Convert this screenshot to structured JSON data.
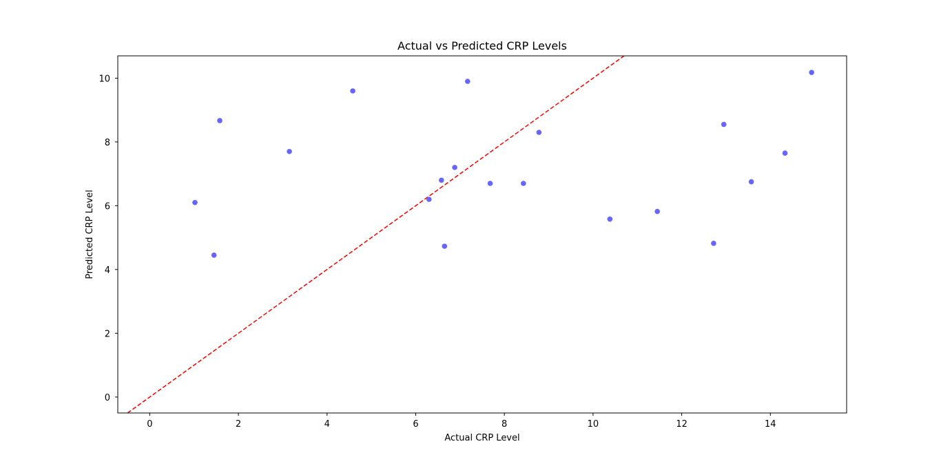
{
  "chart_data": {
    "type": "scatter",
    "title": "Actual vs Predicted CRP Levels",
    "xlabel": "Actual CRP Level",
    "ylabel": "Predicted CRP Level",
    "xlim": [
      -0.72,
      15.72
    ],
    "ylim": [
      -0.5,
      10.7
    ],
    "xticks": [
      0,
      2,
      4,
      6,
      8,
      10,
      12,
      14
    ],
    "yticks": [
      0,
      2,
      4,
      6,
      8,
      10
    ],
    "grid": false,
    "point_color": "#6666ff",
    "reference_line": {
      "style": "dashed",
      "color": "#ff0000",
      "relation": "y = x"
    },
    "points": [
      {
        "x": 1.02,
        "y": 6.1
      },
      {
        "x": 1.45,
        "y": 4.45
      },
      {
        "x": 1.58,
        "y": 8.67
      },
      {
        "x": 3.15,
        "y": 7.7
      },
      {
        "x": 4.58,
        "y": 9.6
      },
      {
        "x": 6.3,
        "y": 6.2
      },
      {
        "x": 6.58,
        "y": 6.8
      },
      {
        "x": 6.65,
        "y": 4.73
      },
      {
        "x": 6.88,
        "y": 7.2
      },
      {
        "x": 7.17,
        "y": 9.9
      },
      {
        "x": 7.68,
        "y": 6.7
      },
      {
        "x": 8.43,
        "y": 6.7
      },
      {
        "x": 8.78,
        "y": 8.3
      },
      {
        "x": 10.38,
        "y": 5.58
      },
      {
        "x": 11.45,
        "y": 5.82
      },
      {
        "x": 12.72,
        "y": 4.82
      },
      {
        "x": 12.95,
        "y": 8.55
      },
      {
        "x": 13.57,
        "y": 6.75
      },
      {
        "x": 14.33,
        "y": 7.65
      },
      {
        "x": 14.93,
        "y": 10.18
      }
    ]
  }
}
